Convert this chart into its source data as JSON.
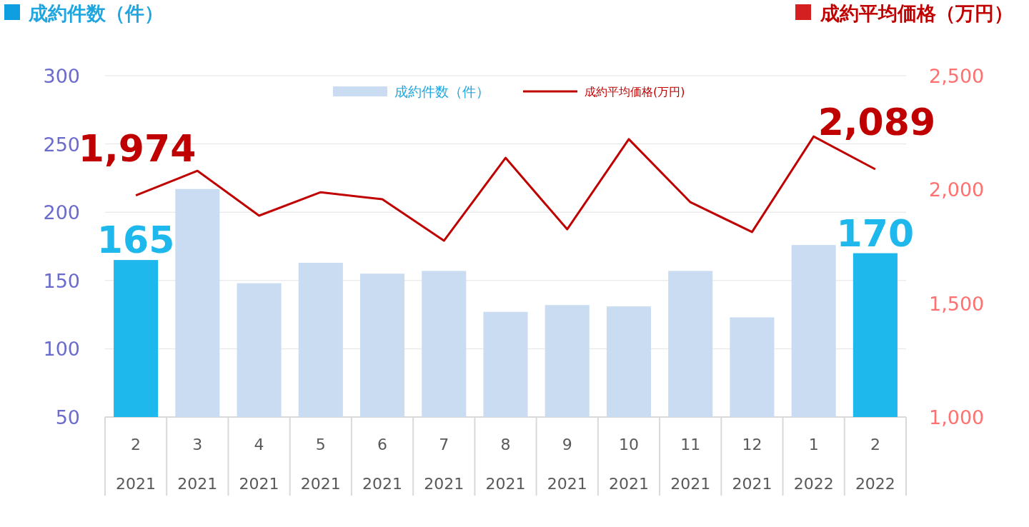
{
  "chart_data": {
    "type": "bar",
    "ylabel": "成約件数（件）",
    "y2label": "成約平均価格（万円）",
    "categories": [
      "2 2021",
      "3 2021",
      "4 2021",
      "5 2021",
      "6 2021",
      "7 2021",
      "8 2021",
      "9 2021",
      "10 2021",
      "11 2021",
      "12 2021",
      "1 2022",
      "2 2022"
    ],
    "series": [
      {
        "name": "成約件数（件）",
        "color": "#c9dcf2",
        "colors": [
          "#1fb8ed",
          "#c9dcf2",
          "#c9dcf2",
          "#c9dcf2",
          "#c9dcf2",
          "#c9dcf2",
          "#c9dcf2",
          "#c9dcf2",
          "#c9dcf2",
          "#c9dcf2",
          "#c9dcf2",
          "#c9dcf2",
          "#1fb8ed"
        ],
        "values": [
          165,
          217,
          148,
          163,
          155,
          157,
          127,
          132,
          131,
          157,
          123,
          176,
          170
        ],
        "value_labels": [
          "165",
          null,
          null,
          null,
          null,
          null,
          null,
          null,
          null,
          null,
          null,
          null,
          "170"
        ]
      },
      {
        "name": "成約平均価格(万円)",
        "type": "line",
        "axis": "y2",
        "color": "#c00000",
        "values": [
          1974,
          2082,
          1885,
          1988,
          1957,
          1775,
          2139,
          1825,
          2221,
          1944,
          1813,
          2233,
          2089
        ],
        "value_labels": [
          "1,974",
          null,
          null,
          null,
          null,
          null,
          null,
          null,
          null,
          null,
          null,
          null,
          "2,089"
        ]
      }
    ],
    "ylim": [
      50,
      300
    ],
    "yticks": [
      50,
      100,
      150,
      200,
      250,
      300
    ],
    "y2lim": [
      1000,
      2500
    ],
    "y2ticks": [
      {
        "value": 1000,
        "label": "1,000"
      },
      {
        "value": 1500,
        "label": "1,500"
      },
      {
        "value": 2000,
        "label": "2,000"
      },
      {
        "value": 2500,
        "label": "2,500"
      }
    ],
    "grid": "y",
    "legend": "top",
    "marker": "none"
  }
}
